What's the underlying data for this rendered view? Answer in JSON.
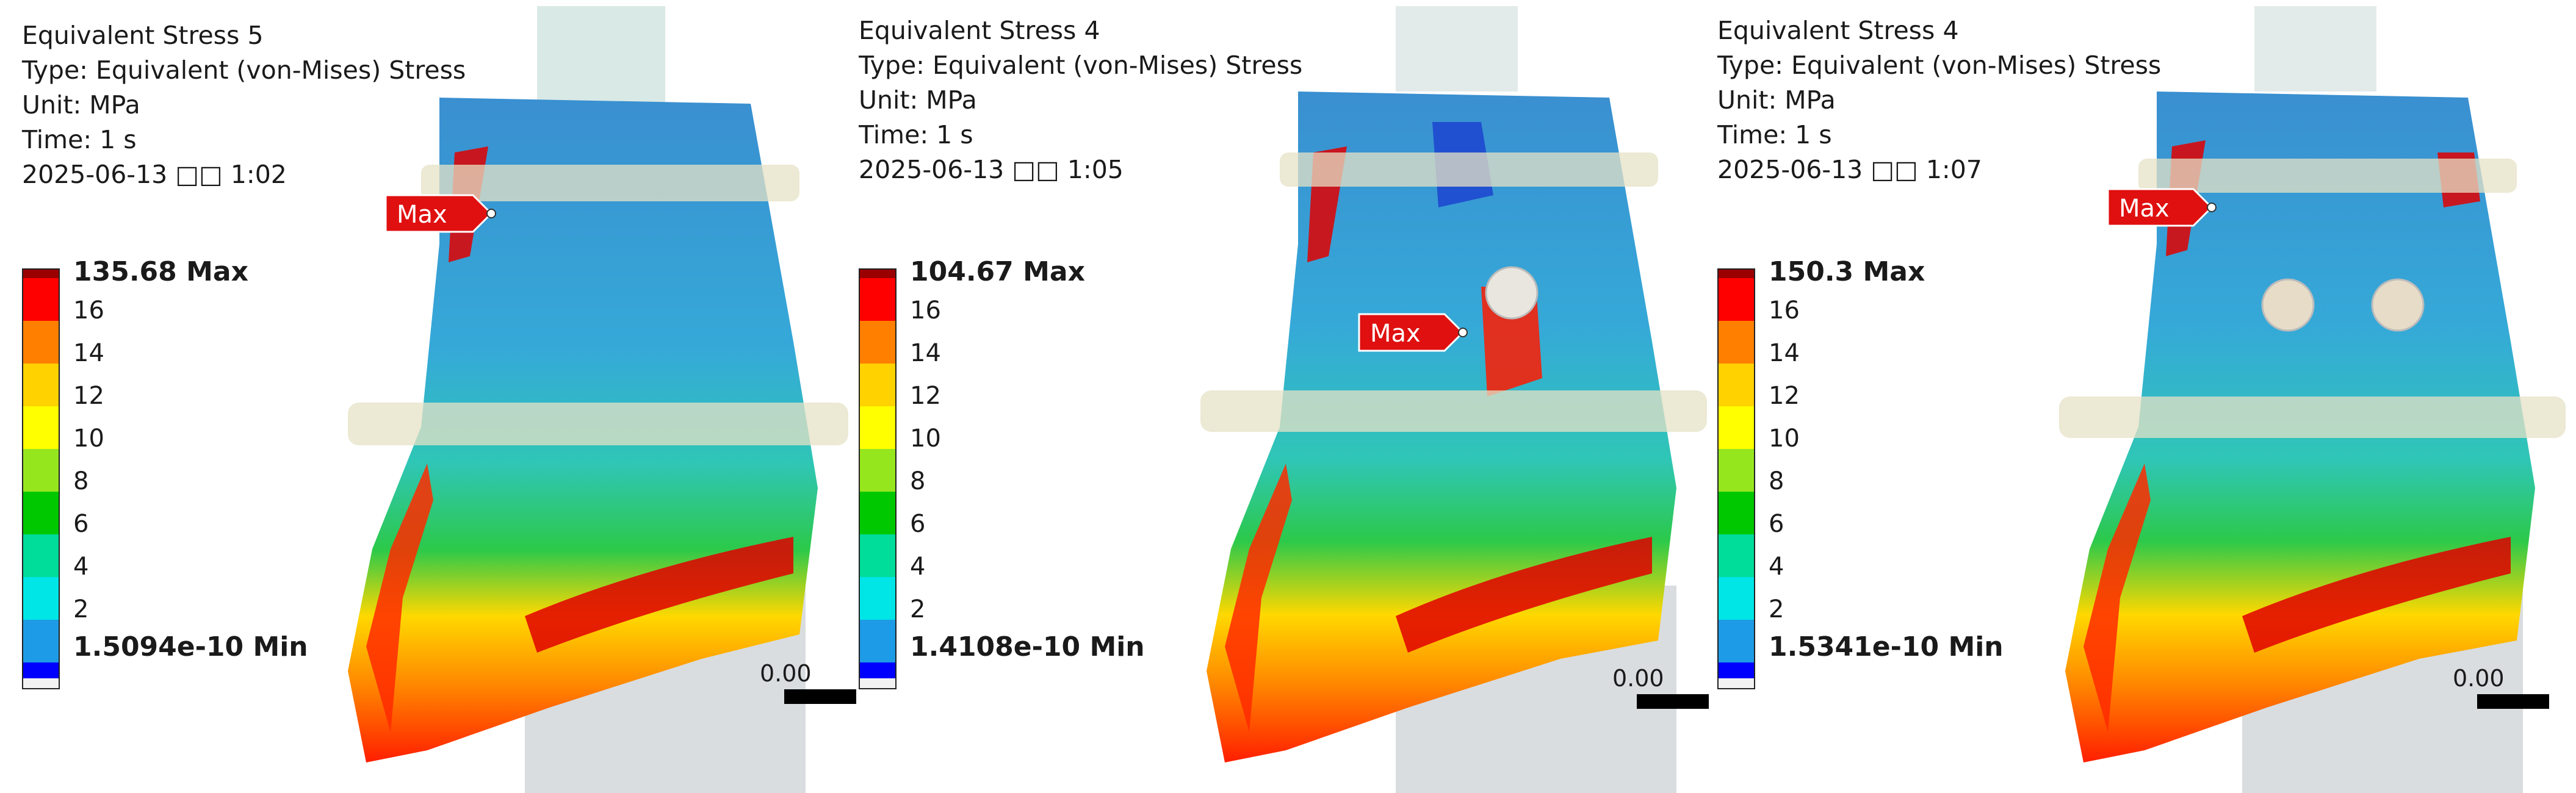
{
  "panels": [
    {
      "title": "Equivalent Stress 5",
      "type": "Type: Equivalent (von-Mises) Stress",
      "unit": "Unit: MPa",
      "time": "Time: 1 s",
      "timestamp": "2025-06-13 □□ 1:02",
      "legend_max": "135.68 Max",
      "legend_min": "1.5094e-10 Min",
      "max_probe": "Max",
      "scale_label": "0.00"
    },
    {
      "title": "Equivalent Stress 4",
      "type": "Type: Equivalent (von-Mises) Stress",
      "unit": "Unit: MPa",
      "time": "Time: 1 s",
      "timestamp": "2025-06-13 □□ 1:05",
      "legend_max": "104.67 Max",
      "legend_min": "1.4108e-10 Min",
      "max_probe": "Max",
      "scale_label": "0.00"
    },
    {
      "title": "Equivalent Stress 4",
      "type": "Type: Equivalent (von-Mises) Stress",
      "unit": "Unit: MPa",
      "time": "Time: 1 s",
      "timestamp": "2025-06-13 □□ 1:07",
      "legend_max": "150.3 Max",
      "legend_min": "1.5341e-10 Min",
      "max_probe": "Max",
      "scale_label": "0.00"
    }
  ],
  "legend_ticks": [
    "16",
    "14",
    "12",
    "10",
    "8",
    "6",
    "4",
    "2"
  ],
  "colormap": {
    "top_cap": "#9a0000",
    "bands": [
      "#ff0000",
      "#ff8000",
      "#ffd200",
      "#ffff00",
      "#96e61e",
      "#00c800",
      "#00dc9a",
      "#00e6e6",
      "#1e9be6",
      "#0000ff"
    ],
    "bottom_cap": "#f2f2f2"
  },
  "probe_color": "#e01010"
}
